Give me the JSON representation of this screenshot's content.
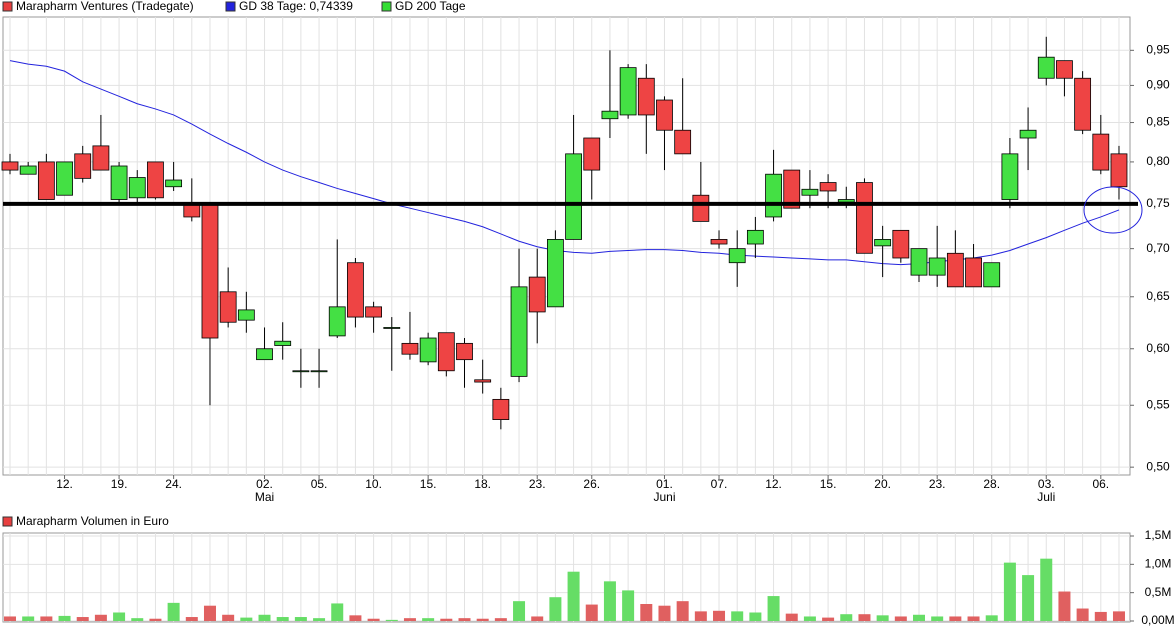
{
  "chart_data": [
    {
      "type": "candlestick",
      "name": "Marapharm Ventures (Tradegate)",
      "color": "#e84040",
      "up_color": "#44e044",
      "down_color": "#ee4444",
      "categories": [
        null,
        null,
        null,
        "12.",
        null,
        null,
        "19.",
        null,
        null,
        "24.",
        null,
        null,
        null,
        null,
        "02.",
        null,
        null,
        "05.",
        null,
        null,
        "10.",
        null,
        null,
        "15.",
        null,
        null,
        "18.",
        null,
        null,
        "23.",
        null,
        null,
        "26.",
        null,
        null,
        null,
        "01.",
        null,
        null,
        "07.",
        null,
        null,
        "12.",
        null,
        null,
        "15.",
        null,
        null,
        "20.",
        null,
        null,
        "23.",
        null,
        null,
        "28.",
        null,
        null,
        "03.",
        null,
        null,
        "06.",
        null
      ],
      "months": [
        null,
        null,
        null,
        null,
        null,
        null,
        null,
        null,
        null,
        null,
        null,
        null,
        null,
        null,
        "Mai",
        null,
        null,
        null,
        null,
        null,
        null,
        null,
        null,
        null,
        null,
        null,
        null,
        null,
        null,
        null,
        null,
        null,
        null,
        null,
        null,
        null,
        "Juni",
        null,
        null,
        null,
        null,
        null,
        null,
        null,
        null,
        null,
        null,
        null,
        null,
        null,
        null,
        null,
        null,
        null,
        null,
        null,
        null,
        "Juli",
        null,
        null,
        null,
        null
      ],
      "open": [
        0.8,
        0.785,
        0.8,
        0.76,
        0.81,
        0.82,
        0.755,
        0.757,
        0.8,
        0.77,
        0.75,
        0.75,
        0.655,
        0.627,
        0.59,
        0.603,
        0.58,
        0.58,
        0.612,
        0.685,
        0.64,
        0.62,
        0.605,
        0.588,
        0.615,
        0.605,
        0.572,
        0.555,
        0.575,
        0.67,
        0.64,
        0.71,
        0.83,
        0.855,
        0.86,
        0.91,
        0.88,
        0.84,
        0.76,
        0.71,
        0.685,
        0.705,
        0.735,
        0.79,
        0.76,
        0.775,
        0.752,
        0.775,
        0.703,
        0.72,
        0.672,
        0.672,
        0.695,
        0.69,
        0.66,
        0.755,
        0.83,
        0.91,
        0.935,
        0.91,
        0.835,
        0.81
      ],
      "close": [
        0.79,
        0.795,
        0.755,
        0.8,
        0.78,
        0.79,
        0.795,
        0.781,
        0.757,
        0.778,
        0.735,
        0.61,
        0.625,
        0.637,
        0.6,
        0.607,
        0.58,
        0.58,
        0.64,
        0.63,
        0.63,
        0.62,
        0.595,
        0.61,
        0.58,
        0.59,
        0.57,
        0.538,
        0.66,
        0.635,
        0.71,
        0.81,
        0.79,
        0.865,
        0.925,
        0.86,
        0.84,
        0.81,
        0.73,
        0.705,
        0.7,
        0.72,
        0.785,
        0.745,
        0.767,
        0.765,
        0.755,
        0.695,
        0.71,
        0.69,
        0.7,
        0.69,
        0.66,
        0.66,
        0.685,
        0.81,
        0.84,
        0.94,
        0.91,
        0.84,
        0.79,
        0.77
      ],
      "high": [
        0.81,
        0.8,
        0.81,
        0.8,
        0.82,
        0.86,
        0.8,
        0.79,
        0.8,
        0.8,
        0.78,
        0.75,
        0.68,
        0.655,
        0.62,
        0.625,
        0.6,
        0.6,
        0.71,
        0.69,
        0.645,
        0.63,
        0.635,
        0.615,
        0.615,
        0.61,
        0.59,
        0.565,
        0.7,
        0.7,
        0.72,
        0.86,
        0.83,
        0.95,
        0.93,
        0.93,
        0.885,
        0.91,
        0.8,
        0.72,
        0.72,
        0.735,
        0.815,
        0.79,
        0.79,
        0.785,
        0.77,
        0.78,
        0.725,
        0.72,
        0.7,
        0.725,
        0.72,
        0.705,
        0.685,
        0.83,
        0.87,
        0.97,
        0.93,
        0.92,
        0.86,
        0.82
      ],
      "low": [
        0.785,
        0.785,
        0.755,
        0.76,
        0.775,
        0.79,
        0.75,
        0.75,
        0.755,
        0.765,
        0.73,
        0.55,
        0.62,
        0.615,
        0.59,
        0.59,
        0.565,
        0.565,
        0.61,
        0.62,
        0.615,
        0.58,
        0.59,
        0.585,
        0.575,
        0.565,
        0.56,
        0.53,
        0.57,
        0.605,
        0.64,
        0.71,
        0.755,
        0.83,
        0.855,
        0.81,
        0.79,
        0.81,
        0.73,
        0.7,
        0.66,
        0.69,
        0.73,
        0.745,
        0.745,
        0.745,
        0.745,
        0.695,
        0.67,
        0.685,
        0.665,
        0.66,
        0.66,
        0.66,
        0.66,
        0.745,
        0.79,
        0.9,
        0.885,
        0.835,
        0.785,
        0.755
      ],
      "overlays": [
        {
          "name": "GD 38 Tage: 0,74339",
          "color": "#2323dd",
          "values": [
            0.935,
            0.93,
            0.927,
            0.92,
            0.905,
            0.895,
            0.885,
            0.875,
            0.868,
            0.86,
            0.848,
            0.835,
            0.823,
            0.812,
            0.8,
            0.79,
            0.782,
            0.775,
            0.768,
            0.762,
            0.756,
            0.75,
            0.745,
            0.74,
            0.735,
            0.73,
            0.724,
            0.716,
            0.708,
            0.702,
            0.698,
            0.696,
            0.695,
            0.697,
            0.698,
            0.699,
            0.699,
            0.698,
            0.696,
            0.695,
            0.693,
            0.692,
            0.691,
            0.69,
            0.689,
            0.688,
            0.688,
            0.686,
            0.684,
            0.683,
            0.684,
            0.686,
            0.688,
            0.69,
            0.693,
            0.698,
            0.705,
            0.712,
            0.72,
            0.728,
            0.735,
            0.743
          ]
        },
        {
          "name": "GD 200 Tage",
          "color": "#33dd33"
        }
      ],
      "hline": 0.75,
      "log_scale": true,
      "grid": true,
      "ylim": [
        0.494,
        1.0
      ],
      "yticks": [
        {
          "value": 0.5,
          "label": "0,50"
        },
        {
          "value": 0.55,
          "label": "0,55"
        },
        {
          "value": 0.6,
          "label": "0,60"
        },
        {
          "value": 0.65,
          "label": "0,65"
        },
        {
          "value": 0.7,
          "label": "0,70"
        },
        {
          "value": 0.75,
          "label": "0,75"
        },
        {
          "value": 0.8,
          "label": "0,80"
        },
        {
          "value": 0.85,
          "label": "0,85"
        },
        {
          "value": 0.9,
          "label": "0,90"
        },
        {
          "value": 0.95,
          "label": "0,95"
        }
      ]
    },
    {
      "type": "bar",
      "title": "Marapharm Volumen in Euro",
      "color": "#e84040",
      "up_color": "#66dd66",
      "down_color": "#e06060",
      "values": [
        80000,
        80000,
        80000,
        90000,
        70000,
        110000,
        150000,
        50000,
        40000,
        320000,
        70000,
        270000,
        110000,
        60000,
        110000,
        70000,
        70000,
        50000,
        310000,
        100000,
        40000,
        20000,
        50000,
        50000,
        40000,
        50000,
        40000,
        50000,
        350000,
        80000,
        420000,
        870000,
        290000,
        700000,
        540000,
        300000,
        270000,
        350000,
        170000,
        180000,
        170000,
        150000,
        440000,
        130000,
        80000,
        60000,
        120000,
        120000,
        100000,
        80000,
        110000,
        80000,
        80000,
        80000,
        100000,
        1030000,
        810000,
        1100000,
        520000,
        220000,
        160000,
        170000
      ],
      "grid": true,
      "ylim": [
        0,
        1500000
      ],
      "yticks": [
        {
          "value": 0,
          "label": "0,00M"
        },
        {
          "value": 500000,
          "label": "0,5M"
        },
        {
          "value": 1000000,
          "label": "1,0M"
        },
        {
          "value": 1500000,
          "label": "1,5M"
        }
      ]
    }
  ]
}
